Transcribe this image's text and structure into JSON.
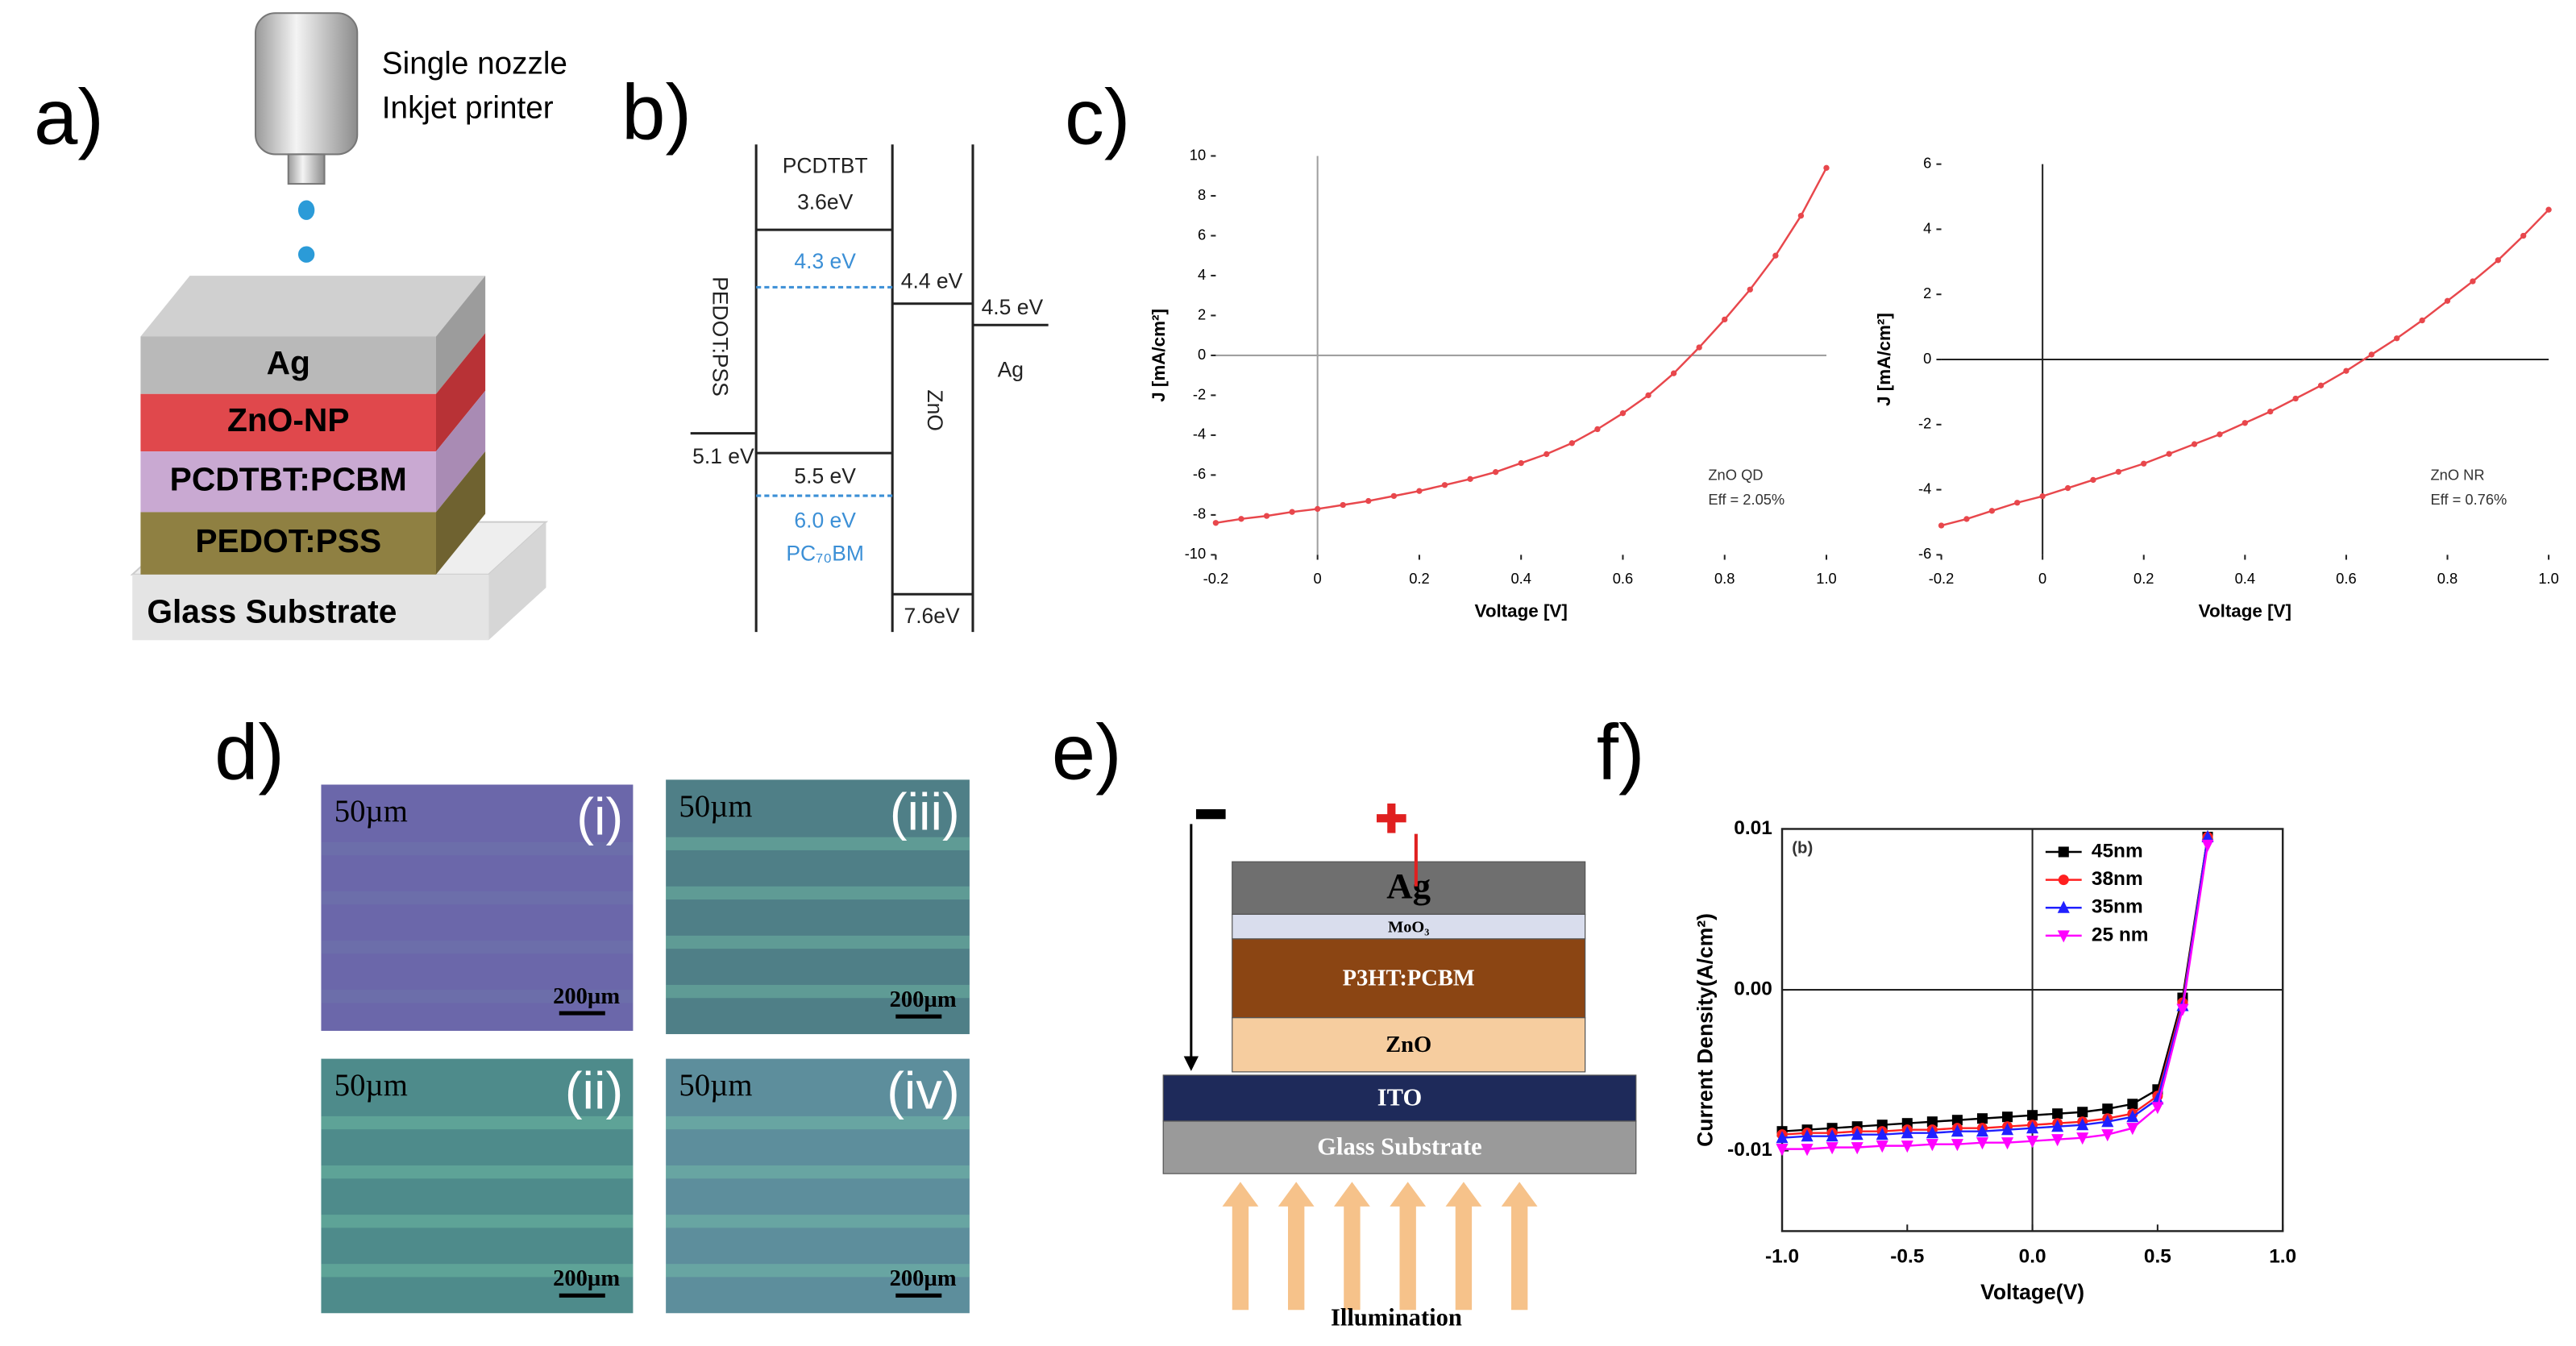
{
  "panel_labels": [
    "a)",
    "b)",
    "c)",
    "d)",
    "e)",
    "f)"
  ],
  "panel_a": {
    "printer": [
      "Single nozzle",
      "Inkjet printer"
    ],
    "layers": [
      "Ag",
      "ZnO-NP",
      "PCDTBT:PCBM",
      "PEDOT:PSS",
      "Glass Substrate"
    ]
  },
  "panel_b": {
    "pedot": "PEDOT:PSS",
    "pedot_level": "5.1 eV",
    "pcdtbt": "PCDTBT",
    "pcdtbt_lumo": "3.6eV",
    "pcdtbt_homo": "5.5 eV",
    "pcbm_lumo": "4.3 eV",
    "pcbm_homo": "6.0 eV",
    "pcbm": "PC₇₀BM",
    "zno": "ZnO",
    "zno_cb": "4.4 eV",
    "zno_vb": "7.6eV",
    "ag": "Ag",
    "ag_level": "4.5 eV"
  },
  "panel_d": {
    "images": [
      {
        "scale": "50µm",
        "label": "(i)",
        "bar": "200µm"
      },
      {
        "scale": "50µm",
        "label": "(iii)",
        "bar": "200µm"
      },
      {
        "scale": "50µm",
        "label": "(ii)",
        "bar": "200µm"
      },
      {
        "scale": "50µm",
        "label": "(iv)",
        "bar": "200µm"
      }
    ]
  },
  "panel_e": {
    "layers": [
      "Ag",
      "MoO₃",
      "P3HT:PCBM",
      "ZnO",
      "ITO",
      "Glass Substrate"
    ],
    "illumination": "Illumination"
  },
  "chart_data": [
    {
      "type": "line",
      "x_label": "Voltage [V]",
      "y_label": "J [mA/cm²]",
      "x": [
        -0.2,
        -0.15,
        -0.1,
        -0.05,
        0,
        0.05,
        0.1,
        0.15,
        0.2,
        0.25,
        0.3,
        0.35,
        0.4,
        0.45,
        0.5,
        0.55,
        0.6,
        0.65,
        0.7,
        0.75,
        0.8,
        0.85,
        0.9,
        0.95,
        1.0
      ],
      "values": [
        -8.4,
        -8.2,
        -8.05,
        -7.85,
        -7.7,
        -7.5,
        -7.3,
        -7.05,
        -6.8,
        -6.5,
        -6.2,
        -5.85,
        -5.4,
        -4.95,
        -4.4,
        -3.7,
        -2.9,
        -2.0,
        -0.9,
        0.4,
        1.8,
        3.3,
        5.0,
        7.0,
        9.4
      ],
      "color": "#e8474c",
      "xlim": [
        -0.2,
        1
      ],
      "ylim": [
        -10,
        10
      ],
      "xticks": [
        -0.2,
        0,
        0.2,
        0.4,
        0.6,
        0.8,
        {
          "value": 1,
          "label": "1.0"
        }
      ],
      "yticks": [
        -10,
        -8,
        -6,
        -4,
        -2,
        0,
        2,
        4,
        6,
        8,
        10
      ],
      "zero_lines": true,
      "zero_line_color": "#a0a0a0",
      "frame": false,
      "annotations": [
        "ZnO QD",
        "Eff = 2.05%"
      ],
      "annotation_corner": "lower right"
    },
    {
      "type": "line",
      "x_label": "Voltage [V]",
      "y_label": "J [mA/cm²]",
      "x": [
        -0.2,
        -0.15,
        -0.1,
        -0.05,
        0,
        0.05,
        0.1,
        0.15,
        0.2,
        0.25,
        0.3,
        0.35,
        0.4,
        0.45,
        0.5,
        0.55,
        0.6,
        0.65,
        0.7,
        0.75,
        0.8,
        0.85,
        0.9,
        0.95,
        1.0
      ],
      "values": [
        -5.1,
        -4.9,
        -4.65,
        -4.4,
        -4.2,
        -3.95,
        -3.7,
        -3.45,
        -3.2,
        -2.9,
        -2.6,
        -2.3,
        -1.95,
        -1.6,
        -1.2,
        -0.8,
        -0.35,
        0.15,
        0.65,
        1.2,
        1.8,
        2.4,
        3.05,
        3.8,
        4.6
      ],
      "color": "#e8474c",
      "xlim": [
        -0.2,
        1
      ],
      "ylim": [
        -6,
        6
      ],
      "xticks": [
        -0.2,
        0,
        0.2,
        0.4,
        0.6,
        0.8,
        {
          "value": 1,
          "label": "1.0"
        }
      ],
      "yticks": [
        -6,
        -4,
        -2,
        0,
        2,
        4,
        6
      ],
      "zero_lines": true,
      "zero_line_color": "#222222",
      "frame": false,
      "annotations": [
        "ZnO NR",
        "Eff = 0.76%"
      ],
      "annotation_corner": "lower right"
    },
    {
      "type": "line",
      "x_label": "Voltage(V)",
      "y_label": "Current Density(A/cm²)",
      "x": [
        -1,
        -0.9,
        -0.8,
        -0.7,
        -0.6,
        -0.5,
        -0.4,
        -0.3,
        -0.2,
        -0.1,
        0,
        0.1,
        0.2,
        0.3,
        0.4,
        0.5,
        0.6,
        0.7
      ],
      "series": [
        {
          "name": "45nm",
          "color": "#000000",
          "marker": "square",
          "values": [
            -0.0088,
            -0.0087,
            -0.0086,
            -0.0085,
            -0.0084,
            -0.0083,
            -0.0082,
            -0.0081,
            -0.008,
            -0.0079,
            -0.0078,
            -0.0077,
            -0.0076,
            -0.0074,
            -0.0071,
            -0.0062,
            -0.0005,
            0.0095
          ]
        },
        {
          "name": "38nm",
          "color": "#ff2020",
          "marker": "circle",
          "values": [
            -0.009,
            -0.0089,
            -0.0089,
            -0.0088,
            -0.0088,
            -0.0087,
            -0.0087,
            -0.0086,
            -0.0086,
            -0.0085,
            -0.0084,
            -0.0083,
            -0.0082,
            -0.008,
            -0.0077,
            -0.0066,
            -0.0008,
            0.0095
          ]
        },
        {
          "name": "35nm",
          "color": "#2020ff",
          "marker": "triangle-up",
          "values": [
            -0.0092,
            -0.0091,
            -0.0091,
            -0.009,
            -0.009,
            -0.0089,
            -0.0089,
            -0.0088,
            -0.0088,
            -0.0087,
            -0.0086,
            -0.0085,
            -0.0084,
            -0.0082,
            -0.0079,
            -0.0068,
            -0.001,
            0.0095
          ]
        },
        {
          "name": "25 nm",
          "color": "#ff00ff",
          "marker": "triangle-down",
          "values": [
            -0.0099,
            -0.0099,
            -0.0098,
            -0.0098,
            -0.0097,
            -0.0097,
            -0.0096,
            -0.0096,
            -0.0095,
            -0.0095,
            -0.0094,
            -0.0093,
            -0.0092,
            -0.009,
            -0.0086,
            -0.0073,
            -0.0012,
            0.009
          ]
        }
      ],
      "xlim": [
        -1,
        1
      ],
      "ylim": [
        -0.015,
        0.01
      ],
      "xticks": [
        {
          "value": -1,
          "label": "-1.0"
        },
        -0.5,
        {
          "value": 0,
          "label": "0.0"
        },
        0.5,
        {
          "value": 1,
          "label": "1.0"
        }
      ],
      "yticks": [
        -0.01,
        {
          "value": 0,
          "label": "0.00"
        },
        0.01
      ],
      "zero_lines": true,
      "zero_line_color": "#222222",
      "frame": true,
      "legend": "upper center",
      "annotations": [
        "(b)"
      ],
      "annotation_corner": "upper left"
    }
  ]
}
